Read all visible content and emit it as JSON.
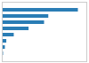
{
  "chart_data": {
    "type": "bar",
    "orientation": "horizontal",
    "categories": [
      null,
      null,
      null,
      null,
      null,
      null,
      null,
      null
    ],
    "values": [
      54000,
      33000,
      30000,
      19000,
      8500,
      3200,
      2200,
      900
    ],
    "color": "#2a7db5",
    "xlim": [
      0,
      60000
    ],
    "grid": false,
    "tick_labels": false
  }
}
